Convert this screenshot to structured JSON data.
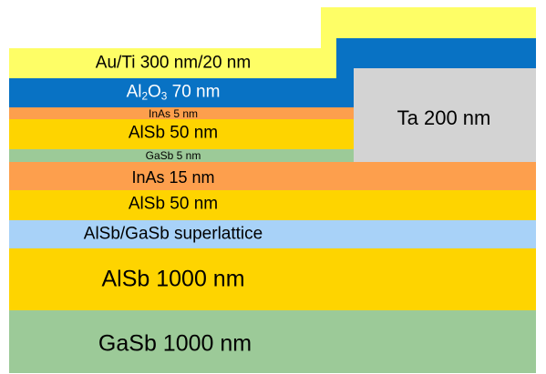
{
  "layers": {
    "gasb_substrate": {
      "text": "GaSb 1000 nm",
      "color": "#9cca98"
    },
    "alsb_buffer": {
      "text": "AlSb 1000 nm",
      "color": "#fed400"
    },
    "superlattice": {
      "text": "AlSb/GaSb superlattice",
      "color": "#a8d2f8"
    },
    "alsb_lower": {
      "text": "AlSb 50 nm",
      "color": "#fed400"
    },
    "inas_15": {
      "text": "InAs 15 nm",
      "color": "#fd9f4d"
    },
    "gasb_5": {
      "text": "GaSb 5 nm",
      "color": "#9cca98"
    },
    "alsb_upper": {
      "text": "AlSb 50 nm",
      "color": "#fed400"
    },
    "inas_5": {
      "text": "InAs 5 nm",
      "color": "#fd9f4d"
    },
    "al2o3": {
      "prefix": "Al",
      "sub1": "2",
      "mid": "O",
      "sub2": "3",
      "suffix": " 70 nm",
      "color": "#0872c4"
    },
    "au_ti": {
      "text": "Au/Ti 300 nm/20 nm",
      "color": "#fefe66"
    },
    "ta": {
      "text": "Ta 200 nm",
      "color": "#d3d3d3"
    }
  }
}
